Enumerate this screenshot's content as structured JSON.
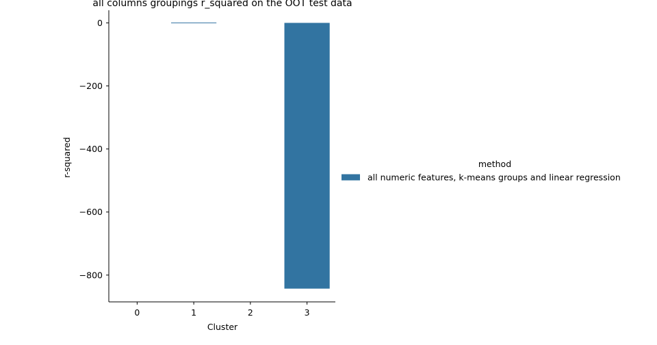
{
  "chart_data": {
    "type": "bar",
    "title": "all columns groupings r_squared on the OOT test data",
    "xlabel": "Cluster",
    "ylabel": "r-squared",
    "categories": [
      "0",
      "1",
      "2",
      "3"
    ],
    "series": [
      {
        "name": "all numeric features, k-means groups and linear regression",
        "values": [
          0,
          0.3,
          0,
          -843
        ],
        "color": "#3274a1"
      }
    ],
    "ylim": [
      -885,
      40
    ],
    "yticks": [
      0,
      -200,
      -400,
      -600,
      -800
    ],
    "ytick_labels": [
      "0",
      "−200",
      "−400",
      "−600",
      "−800"
    ],
    "legend": {
      "title": "method",
      "placement": "right"
    },
    "grid": false
  }
}
